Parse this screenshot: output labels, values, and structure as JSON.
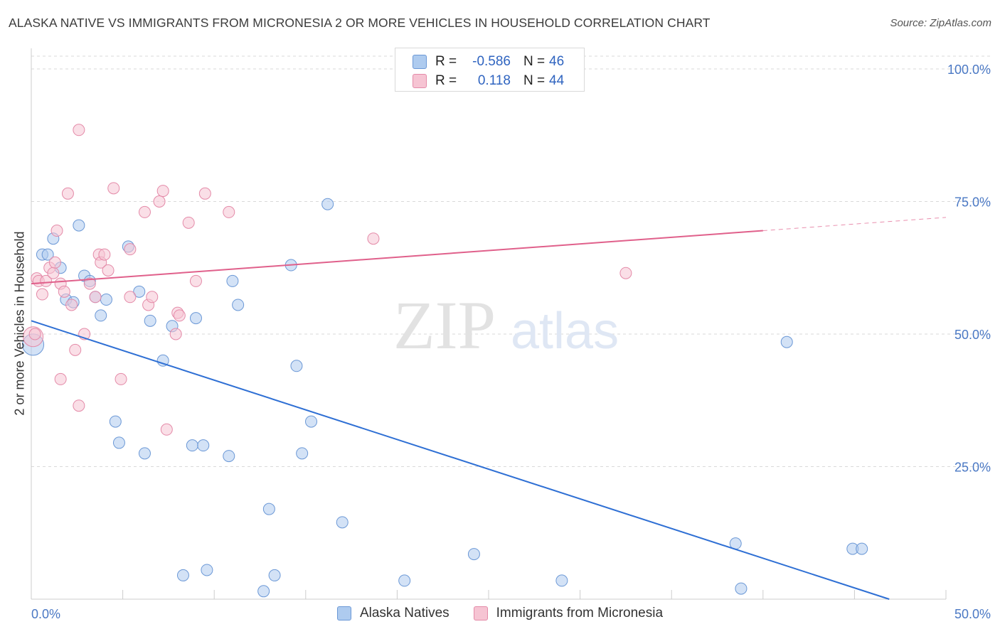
{
  "title": "ALASKA NATIVE VS IMMIGRANTS FROM MICRONESIA 2 OR MORE VEHICLES IN HOUSEHOLD CORRELATION CHART",
  "source": "Source: ZipAtlas.com",
  "watermark": {
    "zip": "ZIP",
    "atlas": "atlas"
  },
  "colors": {
    "blue_fill": "#aecbef",
    "blue_stroke": "#6b98d6",
    "blue_line": "#2e6fd4",
    "pink_fill": "#f6c4d3",
    "pink_stroke": "#e48aa8",
    "pink_line": "#e0608b",
    "axis_text": "#4a78c4",
    "grid": "#d9d9d9"
  },
  "legend": {
    "rows": [
      {
        "r_label": "R =",
        "r_value": "-0.586",
        "n_label": "N =",
        "n_value": "46"
      },
      {
        "r_label": "R =",
        "r_value": "0.118",
        "n_label": "N =",
        "n_value": "44"
      }
    ]
  },
  "bottom_legend": {
    "series1": "Alaska Natives",
    "series2": "Immigrants from Micronesia"
  },
  "chart_data": {
    "type": "scatter",
    "title": "ALASKA NATIVE VS IMMIGRANTS FROM MICRONESIA 2 OR MORE VEHICLES IN HOUSEHOLD CORRELATION CHART",
    "xlabel": "",
    "ylabel": "2 or more Vehicles in Household",
    "xlim": [
      0,
      50
    ],
    "ylim": [
      0,
      105
    ],
    "x_tick_labels": [
      "0.0%",
      "50.0%"
    ],
    "y_ticks": [
      25,
      50,
      75,
      100
    ],
    "y_tick_labels": [
      "25.0%",
      "50.0%",
      "75.0%",
      "100.0%"
    ],
    "grid": "horizontal dashed",
    "legend_position": "top-center",
    "series": [
      {
        "name": "Alaska Natives",
        "color": "#aecbef",
        "trend": {
          "x": [
            0,
            46.9
          ],
          "y": [
            52.5,
            0
          ],
          "dashed_from_x": null
        },
        "points": [
          [
            0.1,
            48,
            15
          ],
          [
            0.6,
            65,
            8
          ],
          [
            0.9,
            65,
            8
          ],
          [
            1.2,
            68,
            8
          ],
          [
            1.6,
            62.5,
            8
          ],
          [
            1.9,
            56.5,
            8
          ],
          [
            2.3,
            56,
            8
          ],
          [
            2.6,
            70.5,
            8
          ],
          [
            2.9,
            61,
            8
          ],
          [
            3.2,
            60,
            8
          ],
          [
            3.5,
            57,
            8
          ],
          [
            3.8,
            53.5,
            8
          ],
          [
            4.1,
            56.5,
            8
          ],
          [
            4.6,
            33.5,
            8
          ],
          [
            4.8,
            29.5,
            8
          ],
          [
            5.3,
            66.5,
            8
          ],
          [
            5.9,
            58,
            8
          ],
          [
            6.2,
            27.5,
            8
          ],
          [
            6.5,
            52.5,
            8
          ],
          [
            7.2,
            45,
            8
          ],
          [
            7.7,
            51.5,
            8
          ],
          [
            8.3,
            4.5,
            8
          ],
          [
            8.8,
            29,
            8
          ],
          [
            9.0,
            53,
            8
          ],
          [
            9.4,
            29,
            8
          ],
          [
            9.6,
            5.5,
            8
          ],
          [
            10.8,
            27,
            8
          ],
          [
            11.0,
            60,
            8
          ],
          [
            11.3,
            55.5,
            8
          ],
          [
            12.7,
            1.5,
            8
          ],
          [
            13.0,
            17,
            8
          ],
          [
            13.3,
            4.5,
            8
          ],
          [
            14.2,
            63,
            8
          ],
          [
            14.5,
            44,
            8
          ],
          [
            14.8,
            27.5,
            8
          ],
          [
            15.3,
            33.5,
            8
          ],
          [
            16.2,
            74.5,
            8
          ],
          [
            17.0,
            14.5,
            8
          ],
          [
            20.4,
            3.5,
            8
          ],
          [
            24.2,
            8.5,
            8
          ],
          [
            29.0,
            3.5,
            8
          ],
          [
            38.5,
            10.5,
            8
          ],
          [
            38.8,
            2,
            8
          ],
          [
            41.3,
            48.5,
            8
          ],
          [
            44.9,
            9.5,
            8
          ],
          [
            45.4,
            9.5,
            8
          ]
        ]
      },
      {
        "name": "Immigrants from Micronesia",
        "color": "#f6c4d3",
        "trend": {
          "x": [
            0,
            50
          ],
          "y": [
            59.5,
            72
          ],
          "dashed_from_x": 40
        },
        "points": [
          [
            0.1,
            49.5,
            14
          ],
          [
            0.3,
            60.5,
            8
          ],
          [
            0.4,
            60,
            8
          ],
          [
            0.6,
            57.5,
            8
          ],
          [
            0.8,
            60,
            8
          ],
          [
            1.0,
            62.5,
            8
          ],
          [
            1.2,
            61.5,
            8
          ],
          [
            1.3,
            63.5,
            8
          ],
          [
            1.4,
            69.5,
            8
          ],
          [
            1.6,
            41.5,
            8
          ],
          [
            1.6,
            59.5,
            8
          ],
          [
            1.8,
            58,
            8
          ],
          [
            2.0,
            76.5,
            8
          ],
          [
            2.2,
            55.5,
            8
          ],
          [
            2.4,
            47,
            8
          ],
          [
            2.6,
            88.5,
            8
          ],
          [
            2.6,
            36.5,
            8
          ],
          [
            2.9,
            50,
            8
          ],
          [
            3.2,
            59.5,
            8
          ],
          [
            3.5,
            57,
            8
          ],
          [
            3.7,
            65,
            8
          ],
          [
            3.8,
            63.5,
            8
          ],
          [
            4.0,
            65,
            8
          ],
          [
            4.2,
            62,
            8
          ],
          [
            4.5,
            77.5,
            8
          ],
          [
            4.9,
            41.5,
            8
          ],
          [
            5.4,
            66,
            8
          ],
          [
            5.4,
            57,
            8
          ],
          [
            6.2,
            73,
            8
          ],
          [
            6.4,
            55.5,
            8
          ],
          [
            6.6,
            57,
            8
          ],
          [
            7.0,
            75,
            8
          ],
          [
            7.2,
            77,
            8
          ],
          [
            7.4,
            32,
            8
          ],
          [
            7.9,
            50,
            8
          ],
          [
            8.0,
            54,
            8
          ],
          [
            8.1,
            53.5,
            8
          ],
          [
            8.6,
            71,
            8
          ],
          [
            9.0,
            60,
            8
          ],
          [
            9.5,
            76.5,
            8
          ],
          [
            10.8,
            73,
            8
          ],
          [
            18.7,
            68,
            8
          ],
          [
            32.5,
            61.5,
            8
          ],
          [
            0.2,
            50,
            8
          ]
        ]
      }
    ]
  }
}
